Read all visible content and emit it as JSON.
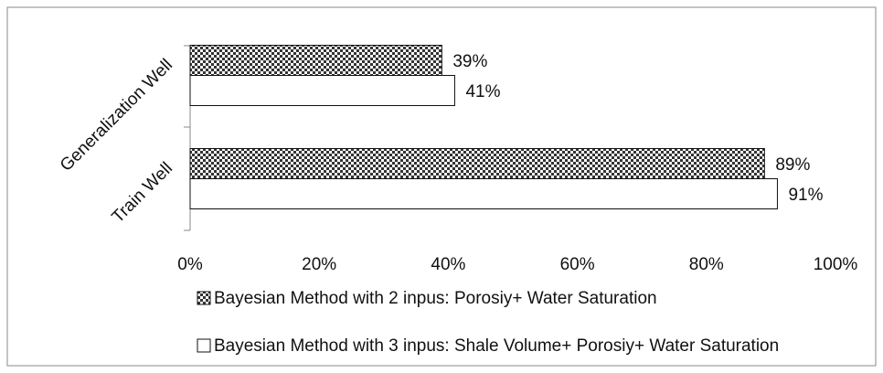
{
  "chart_data": {
    "type": "bar",
    "orientation": "horizontal",
    "categories": [
      "Generalization Well",
      "Train Well"
    ],
    "series": [
      {
        "name": "Bayesian Method with 2 inpus: Porosiy+ Water Saturation",
        "color": "#333333",
        "pattern": "checker",
        "values": [
          39,
          89
        ],
        "value_labels": [
          "39%",
          "89%"
        ]
      },
      {
        "name": "Bayesian Method with 3 inpus: Shale Volume+ Porosiy+ Water Saturation",
        "color": "#ffffff",
        "values": [
          41,
          91
        ],
        "value_labels": [
          "41%",
          "91%"
        ]
      }
    ],
    "xlim": [
      0,
      100
    ],
    "xticks": [
      {
        "value": 0,
        "label": "0%"
      },
      {
        "value": 20,
        "label": "20%"
      },
      {
        "value": 40,
        "label": "40%"
      },
      {
        "value": 60,
        "label": "60%"
      },
      {
        "value": 80,
        "label": "80%"
      },
      {
        "value": 100,
        "label": "100%"
      }
    ],
    "grid": false,
    "legend": "bottom"
  }
}
